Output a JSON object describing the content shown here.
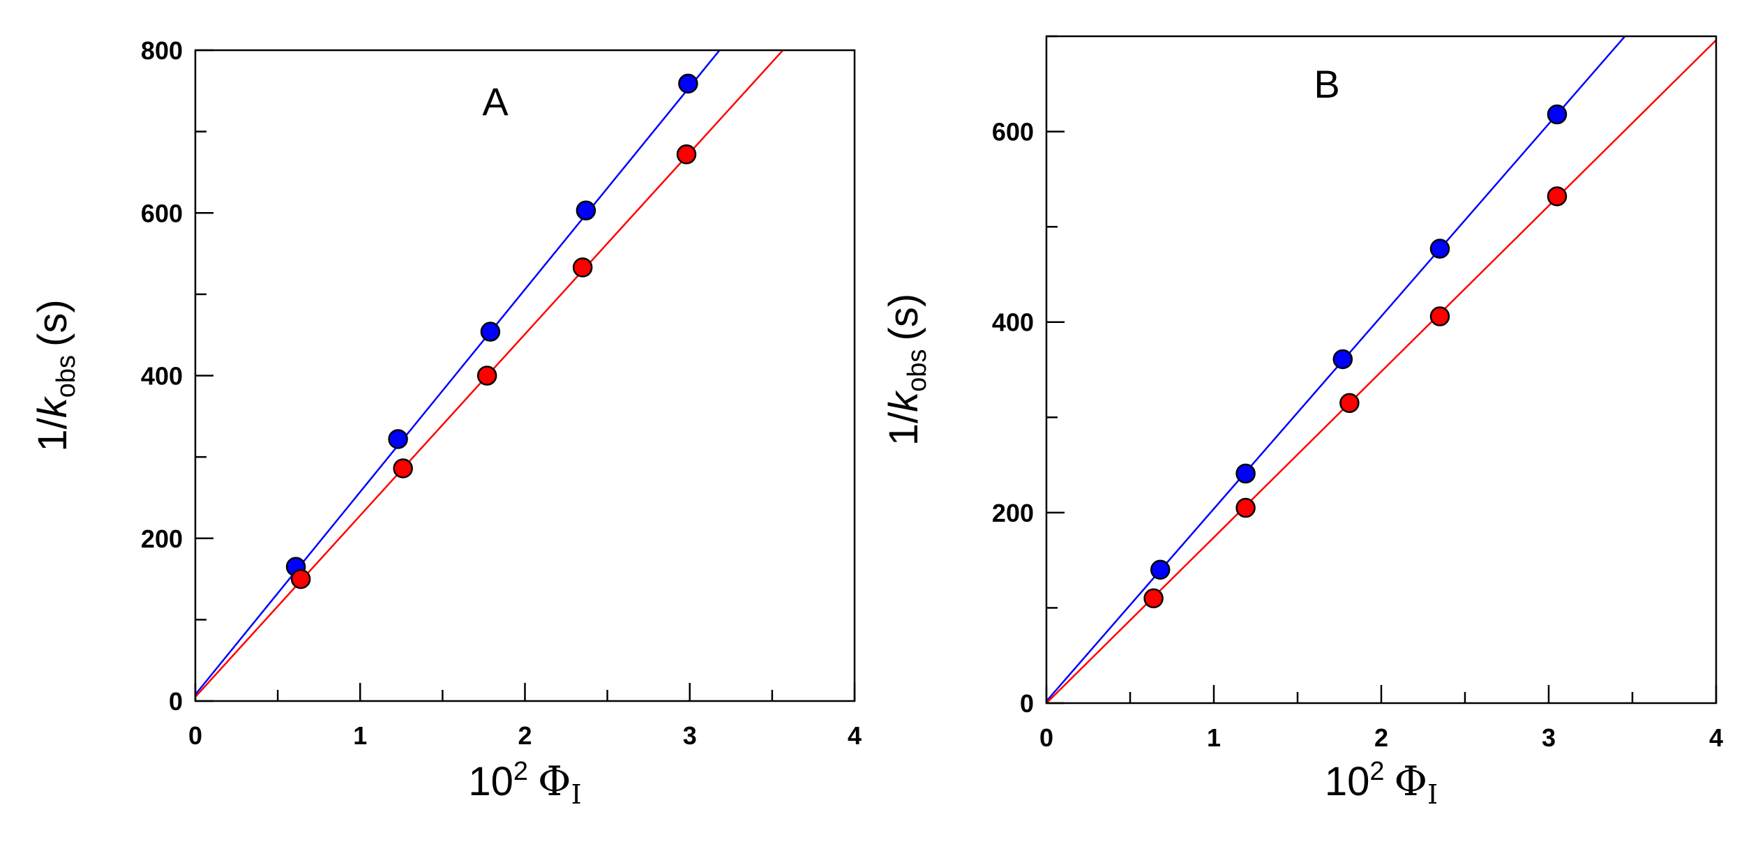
{
  "chart_data": [
    {
      "type": "scatter",
      "panel_label": "A",
      "xlabel": {
        "prefix": "10",
        "exponent": "2",
        "symbol": "Φ",
        "subscript": "I"
      },
      "ylabel": {
        "prefix": "1/",
        "variable": "k",
        "subscript": "obs",
        "unit": "(s)"
      },
      "xlim": [
        0,
        4
      ],
      "ylim": [
        0,
        800
      ],
      "x_ticks": [
        0,
        1,
        2,
        3,
        4
      ],
      "x_tick_labels": [
        "0",
        "1",
        "2",
        "3",
        "4"
      ],
      "y_ticks": [
        0,
        200,
        400,
        600,
        800
      ],
      "y_tick_labels": [
        "0",
        "200",
        "400",
        "600",
        "800"
      ],
      "grid": false,
      "series": [
        {
          "name": "blue",
          "color": "#0000ff",
          "x": [
            0.61,
            1.23,
            1.79,
            2.37,
            2.99
          ],
          "y": [
            165,
            322,
            454,
            603,
            759
          ],
          "fit": {
            "slope": 249,
            "intercept": 8
          }
        },
        {
          "name": "red",
          "color": "#ff0000",
          "x": [
            0.64,
            1.26,
            1.77,
            2.35,
            2.98
          ],
          "y": [
            150,
            286,
            400,
            533,
            672
          ],
          "fit": {
            "slope": 223,
            "intercept": 5
          }
        }
      ]
    },
    {
      "type": "scatter",
      "panel_label": "B",
      "xlabel": {
        "prefix": "10",
        "exponent": "2",
        "symbol": "Φ",
        "subscript": "I"
      },
      "ylabel": {
        "prefix": "1/",
        "variable": "k",
        "subscript": "obs",
        "unit": "(s)"
      },
      "xlim": [
        0,
        4
      ],
      "ylim": [
        0,
        700
      ],
      "x_ticks": [
        0,
        1,
        2,
        3,
        4
      ],
      "x_tick_labels": [
        "0",
        "1",
        "2",
        "3",
        "4"
      ],
      "y_ticks": [
        0,
        200,
        400,
        600
      ],
      "y_tick_labels": [
        "0",
        "200",
        "400",
        "600"
      ],
      "grid": false,
      "series": [
        {
          "name": "blue",
          "color": "#0000ff",
          "x": [
            0.68,
            1.19,
            1.77,
            2.35,
            3.05
          ],
          "y": [
            140,
            241,
            361,
            477,
            618
          ],
          "fit": {
            "slope": 202,
            "intercept": 2
          }
        },
        {
          "name": "red",
          "color": "#ff0000",
          "x": [
            0.64,
            1.19,
            1.81,
            2.35,
            3.05
          ],
          "y": [
            110,
            205,
            315,
            406,
            532
          ],
          "fit": {
            "slope": 174,
            "intercept": 0
          }
        }
      ]
    }
  ]
}
